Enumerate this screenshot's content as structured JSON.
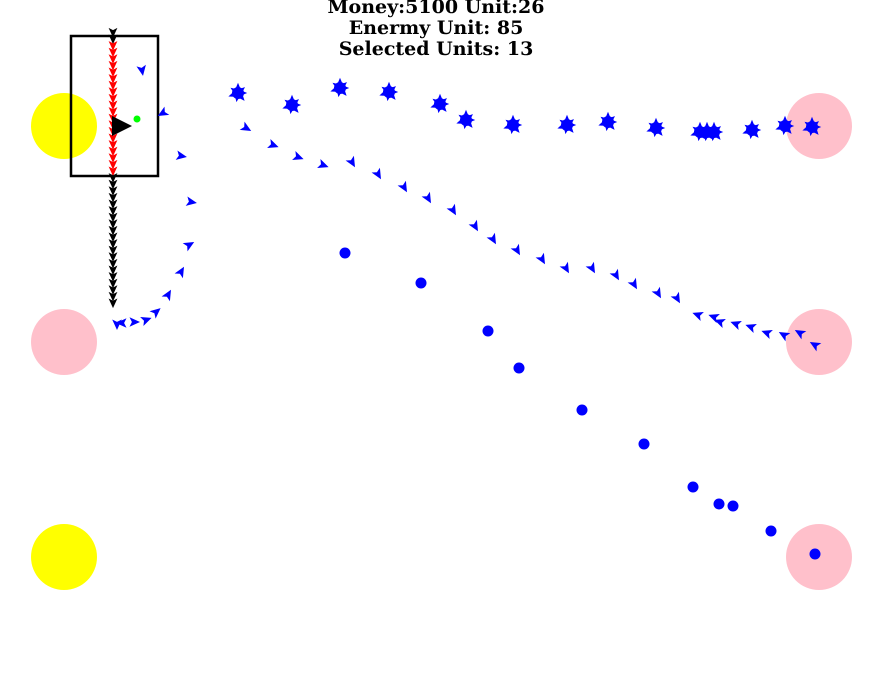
{
  "hud": {
    "money_label": "Money:5100 Unit:26",
    "enemy_label": "Enermy Unit: 85",
    "selected_label": "Selected Units: 13"
  },
  "colors": {
    "base_neutral": "#ffc0cb",
    "base_player": "#ffff00",
    "unit_friendly": "#0000ff",
    "unit_selected": "#ff0000",
    "unit_column": "#000000",
    "commander": "#000000",
    "marker": "#00ff00",
    "selection_box": "#000000",
    "background": "#ffffff"
  },
  "icons": {
    "unit": "triangle-unit-icon",
    "cluster": "unit-cluster-icon",
    "dot": "unit-dot-icon",
    "base": "base-circle-icon"
  }
}
